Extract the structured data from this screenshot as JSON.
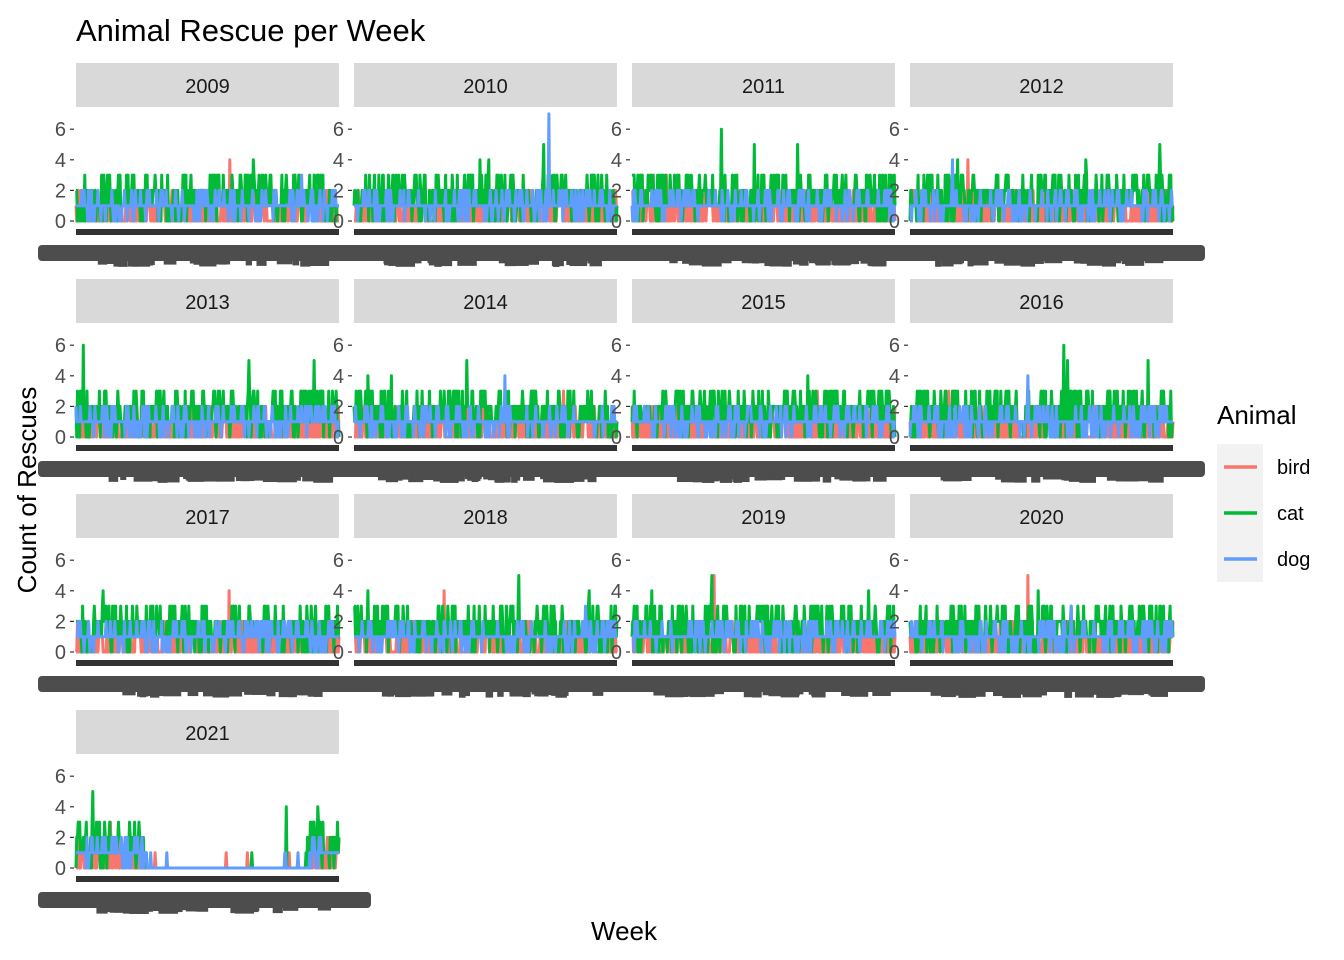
{
  "chart_data": {
    "type": "line",
    "title": "Animal Rescue per Week",
    "xlabel": "Week",
    "ylabel": "Count of Rescues",
    "ylim": [
      0,
      7
    ],
    "y_ticks": [
      0,
      2,
      4,
      6
    ],
    "grid": false,
    "legend": {
      "title": "Animal",
      "position": "right"
    },
    "facets": [
      "2009",
      "2010",
      "2011",
      "2012",
      "2013",
      "2014",
      "2015",
      "2016",
      "2017",
      "2018",
      "2019",
      "2020",
      "2021"
    ],
    "series": [
      {
        "name": "bird",
        "color": "#F8766D"
      },
      {
        "name": "cat",
        "color": "#00BA38"
      },
      {
        "name": "dog",
        "color": "#619CFF"
      }
    ],
    "x_tick_labels_note": "overlapping (unreadable)",
    "peaks": {
      "2009": {
        "bird": 4,
        "cat": 4,
        "dog": 3
      },
      "2010": {
        "bird": 3,
        "cat": 5,
        "dog": 7
      },
      "2011": {
        "bird": 3,
        "cat": 6,
        "dog": 2
      },
      "2012": {
        "bird": 4,
        "cat": 5,
        "dog": 4
      },
      "2013": {
        "bird": 3,
        "cat": 6,
        "dog": 2
      },
      "2014": {
        "bird": 3,
        "cat": 5,
        "dog": 4
      },
      "2015": {
        "bird": 3,
        "cat": 4,
        "dog": 2
      },
      "2016": {
        "bird": 3,
        "cat": 6,
        "dog": 4
      },
      "2017": {
        "bird": 4,
        "cat": 4,
        "dog": 2
      },
      "2018": {
        "bird": 4,
        "cat": 5,
        "dog": 3
      },
      "2019": {
        "bird": 5,
        "cat": 5,
        "dog": 2
      },
      "2020": {
        "bird": 5,
        "cat": 4,
        "dog": 3
      },
      "2021": {
        "bird": 3,
        "cat": 5,
        "dog": 1
      }
    }
  }
}
